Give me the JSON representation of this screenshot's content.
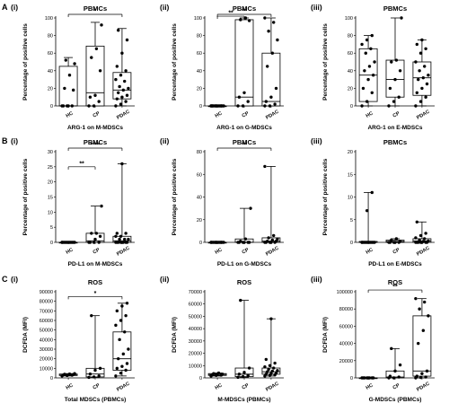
{
  "row_labels": [
    "A",
    "B",
    "C"
  ],
  "chart_data": [
    {
      "type": "box",
      "row": "A",
      "panel_label": "(i)",
      "title": "PBMCs",
      "ylabel": "Percentage of positive cells",
      "xlabel": "ARG-1 on M-MDSCs",
      "categories": [
        "HC",
        "CP",
        "PDAC"
      ],
      "ylim": [
        0,
        100
      ],
      "yticks": [
        "0",
        "20",
        "40",
        "60",
        "80",
        "100"
      ],
      "boxes": [
        {
          "min": 0,
          "q1": 0,
          "median": 0,
          "q3": 45,
          "max": 55
        },
        {
          "min": 0,
          "q1": 0,
          "median": 15,
          "q3": 68,
          "max": 95
        },
        {
          "min": 0,
          "q1": 8,
          "median": 18,
          "q3": 38,
          "max": 88
        }
      ],
      "points": [
        [
          0,
          0,
          0,
          0,
          0,
          18,
          20,
          35,
          48,
          52
        ],
        [
          0,
          0,
          5,
          10,
          12,
          40,
          55,
          65,
          92
        ],
        [
          0,
          2,
          5,
          8,
          10,
          12,
          15,
          18,
          20,
          22,
          28,
          30,
          35,
          40,
          45,
          60,
          75,
          86
        ]
      ],
      "brackets": [
        {
          "from": 0,
          "to": 2,
          "y": 112,
          "label": "*"
        }
      ]
    },
    {
      "type": "box",
      "row": "A",
      "panel_label": "(ii)",
      "title": "PBMCs",
      "ylabel": "Percentage of positive cells",
      "xlabel": "ARG-1 on G-MDSCs",
      "categories": [
        "HC",
        "CP",
        "PDAC"
      ],
      "ylim": [
        0,
        100
      ],
      "yticks": [
        "0",
        "20",
        "40",
        "60",
        "80",
        "100"
      ],
      "boxes": [
        {
          "min": 0,
          "q1": 0,
          "median": 0,
          "q3": 0,
          "max": 0
        },
        {
          "min": 0,
          "q1": 0,
          "median": 10,
          "q3": 98,
          "max": 100
        },
        {
          "min": 0,
          "q1": 0,
          "median": 5,
          "q3": 60,
          "max": 100
        }
      ],
      "points": [
        [
          0,
          0,
          0,
          0,
          0,
          0,
          0,
          0,
          0,
          0,
          0,
          0,
          0,
          0,
          0
        ],
        [
          0,
          0,
          5,
          10,
          15,
          97,
          98,
          100
        ],
        [
          0,
          0,
          2,
          5,
          10,
          20,
          45,
          60,
          75,
          85,
          95,
          100
        ]
      ],
      "brackets": [
        {
          "from": 0,
          "to": 2,
          "y": 112,
          "label": "**"
        },
        {
          "from": 0,
          "to": 1,
          "y": 102,
          "label": "**"
        }
      ]
    },
    {
      "type": "box",
      "row": "A",
      "panel_label": "(iii)",
      "title": "PBMCs",
      "ylabel": "Percentage of positive cells",
      "xlabel": "ARG-1 on E-MDSCs",
      "categories": [
        "HC",
        "CP",
        "PDAC"
      ],
      "ylim": [
        0,
        100
      ],
      "yticks": [
        "0",
        "20",
        "40",
        "60",
        "80",
        "100"
      ],
      "boxes": [
        {
          "min": 0,
          "q1": 5,
          "median": 35,
          "q3": 65,
          "max": 80
        },
        {
          "min": 0,
          "q1": 10,
          "median": 30,
          "q3": 52,
          "max": 100
        },
        {
          "min": 0,
          "q1": 12,
          "median": 32,
          "q3": 50,
          "max": 75
        }
      ],
      "points": [
        [
          0,
          5,
          15,
          20,
          30,
          35,
          40,
          45,
          50,
          60,
          65,
          70,
          75,
          80
        ],
        [
          0,
          5,
          10,
          20,
          30,
          40,
          50,
          52,
          100
        ],
        [
          0,
          5,
          10,
          15,
          20,
          25,
          30,
          32,
          35,
          40,
          45,
          50,
          60,
          65,
          70,
          75
        ]
      ],
      "brackets": []
    },
    {
      "type": "box",
      "row": "B",
      "panel_label": "(i)",
      "title": "PBMCs",
      "ylabel": "Percentage of positive cells",
      "xlabel": "PD-L1 on M-MDSCs",
      "categories": [
        "HC",
        "CP",
        "PDAC"
      ],
      "ylim": [
        0,
        30
      ],
      "yticks": [
        "0",
        "5",
        "10",
        "15",
        "20",
        "25",
        "30"
      ],
      "boxes": [
        {
          "min": 0,
          "q1": 0,
          "median": 0,
          "q3": 0,
          "max": 0
        },
        {
          "min": 0,
          "q1": 0,
          "median": 0.5,
          "q3": 3,
          "max": 12
        },
        {
          "min": 0,
          "q1": 0,
          "median": 0.5,
          "q3": 2,
          "max": 26
        }
      ],
      "points": [
        [
          0,
          0,
          0,
          0,
          0,
          0,
          0,
          0,
          0,
          0,
          0,
          0
        ],
        [
          0,
          0,
          0,
          0,
          1,
          2,
          3,
          3,
          12
        ],
        [
          0,
          0,
          0,
          0,
          0,
          0,
          0,
          0,
          1,
          1,
          1,
          2,
          2,
          3,
          3,
          26
        ]
      ],
      "brackets": [
        {
          "from": 0,
          "to": 2,
          "y": 31.5,
          "label": "****"
        },
        {
          "from": 0,
          "to": 1,
          "y": 25,
          "label": "**"
        }
      ]
    },
    {
      "type": "box",
      "row": "B",
      "panel_label": "(ii)",
      "title": "PBMCs",
      "ylabel": "Percentage of positive cells",
      "xlabel": "PD-L1 on G-MDSCs",
      "categories": [
        "HC",
        "CP",
        "PDAC"
      ],
      "ylim": [
        0,
        80
      ],
      "yticks": [
        "0",
        "20",
        "40",
        "60",
        "80"
      ],
      "boxes": [
        {
          "min": 0,
          "q1": 0,
          "median": 0,
          "q3": 0,
          "max": 0
        },
        {
          "min": 0,
          "q1": 0,
          "median": 0,
          "q3": 3,
          "max": 30
        },
        {
          "min": 0,
          "q1": 0,
          "median": 1,
          "q3": 4,
          "max": 67
        }
      ],
      "points": [
        [
          0,
          0,
          0,
          0,
          0,
          0,
          0,
          0,
          0,
          0,
          0,
          0,
          0,
          0
        ],
        [
          0,
          0,
          0,
          0,
          0,
          0,
          1,
          3,
          30
        ],
        [
          0,
          0,
          0,
          0,
          0,
          1,
          1,
          2,
          3,
          4,
          6,
          67
        ]
      ],
      "brackets": [
        {
          "from": 0,
          "to": 2,
          "y": 86,
          "label": "**"
        }
      ]
    },
    {
      "type": "box",
      "row": "B",
      "panel_label": "(iii)",
      "title": "PBMCs",
      "ylabel": "Percentage of positive cells",
      "xlabel": "PD-L1 on E-MDSCs",
      "categories": [
        "HC",
        "CP",
        "PDAC"
      ],
      "ylim": [
        0,
        20
      ],
      "yticks": [
        "0",
        "5",
        "10",
        "15",
        "20"
      ],
      "boxes": [
        {
          "min": 0,
          "q1": 0,
          "median": 0,
          "q3": 0.2,
          "max": 11
        },
        {
          "min": 0,
          "q1": 0,
          "median": 0.2,
          "q3": 0.5,
          "max": 0.8
        },
        {
          "min": 0,
          "q1": 0,
          "median": 0.3,
          "q3": 0.8,
          "max": 4.5
        }
      ],
      "points": [
        [
          0,
          0,
          0,
          0,
          0,
          0,
          0,
          0,
          0,
          0,
          0,
          0,
          7,
          11
        ],
        [
          0,
          0,
          0,
          0,
          0,
          0.2,
          0.5,
          0.8
        ],
        [
          0,
          0,
          0,
          0,
          0,
          0,
          0,
          0.2,
          0.3,
          0.5,
          0.8,
          1,
          1.5,
          2,
          4.5
        ]
      ],
      "brackets": []
    },
    {
      "type": "box",
      "row": "C",
      "panel_label": "(i)",
      "title": "ROS",
      "ylabel": "DCFDA (MFI)",
      "xlabel": "Total MDSCs (PBMCs)",
      "categories": [
        "HC",
        "CP",
        "PDAC"
      ],
      "ylim": [
        0,
        90000
      ],
      "yticks": [
        "0",
        "10000",
        "20000",
        "30000",
        "40000",
        "50000",
        "60000",
        "70000",
        "80000",
        "90000"
      ],
      "boxes": [
        {
          "min": 2000,
          "q1": 2500,
          "median": 3000,
          "q3": 4000,
          "max": 4500
        },
        {
          "min": 500,
          "q1": 1000,
          "median": 4000,
          "q3": 10000,
          "max": 65000
        },
        {
          "min": 2000,
          "q1": 8000,
          "median": 20000,
          "q3": 48000,
          "max": 78000
        }
      ],
      "points": [
        [
          2000,
          2500,
          2800,
          3000,
          3200,
          3500,
          3800,
          4000,
          4500
        ],
        [
          500,
          1000,
          2000,
          4000,
          8000,
          10000,
          65000
        ],
        [
          2000,
          5000,
          8000,
          10000,
          12000,
          15000,
          20000,
          25000,
          30000,
          40000,
          48000,
          55000,
          60000,
          65000,
          70000,
          75000,
          78000
        ]
      ],
      "brackets": [
        {
          "from": 0,
          "to": 2,
          "y": 85000,
          "label": "*"
        }
      ]
    },
    {
      "type": "box",
      "row": "C",
      "panel_label": "(ii)",
      "title": "ROS",
      "ylabel": "DCFDA (MFI)",
      "xlabel": "M-MDSCs (PBMCs)",
      "categories": [
        "HC",
        "CP",
        "PDAC"
      ],
      "ylim": [
        0,
        70000
      ],
      "yticks": [
        "0",
        "10000",
        "20000",
        "30000",
        "40000",
        "50000",
        "60000",
        "70000"
      ],
      "boxes": [
        {
          "min": 1500,
          "q1": 2000,
          "median": 2800,
          "q3": 3500,
          "max": 4000
        },
        {
          "min": 500,
          "q1": 1000,
          "median": 3000,
          "q3": 8000,
          "max": 63000
        },
        {
          "min": 1500,
          "q1": 3000,
          "median": 5000,
          "q3": 8000,
          "max": 48000
        }
      ],
      "points": [
        [
          1500,
          2000,
          2200,
          2500,
          2800,
          3000,
          3500,
          4000
        ],
        [
          500,
          1000,
          2000,
          3000,
          4500,
          8000,
          63000
        ],
        [
          1500,
          2000,
          2500,
          3000,
          3500,
          4000,
          5000,
          5500,
          6000,
          7000,
          8000,
          9000,
          10000,
          12000,
          15000,
          48000
        ]
      ],
      "brackets": []
    },
    {
      "type": "box",
      "row": "C",
      "panel_label": "(iii)",
      "title": "ROS",
      "ylabel": "DCFDA (MFI)",
      "xlabel": "G-MDSCs (PBMCs)",
      "categories": [
        "HC",
        "CP",
        "PDAC"
      ],
      "ylim": [
        0,
        100000
      ],
      "yticks": [
        "0",
        "20000",
        "40000",
        "60000",
        "80000",
        "100000"
      ],
      "boxes": [
        {
          "min": 0,
          "q1": 0,
          "median": 0,
          "q3": 0,
          "max": 0
        },
        {
          "min": 0,
          "q1": 0,
          "median": 1000,
          "q3": 8000,
          "max": 34000
        },
        {
          "min": 0,
          "q1": 2000,
          "median": 8000,
          "q3": 72000,
          "max": 92000
        }
      ],
      "points": [
        [
          0,
          0,
          0,
          0,
          0,
          0,
          0,
          0
        ],
        [
          0,
          0,
          1000,
          2000,
          8000,
          15000,
          34000
        ],
        [
          0,
          500,
          1000,
          2000,
          5000,
          8000,
          40000,
          55000,
          72000,
          80000,
          88000,
          92000
        ]
      ],
      "brackets": [
        {
          "from": 0,
          "to": 2,
          "y": 102000,
          "label": "**"
        }
      ]
    }
  ]
}
